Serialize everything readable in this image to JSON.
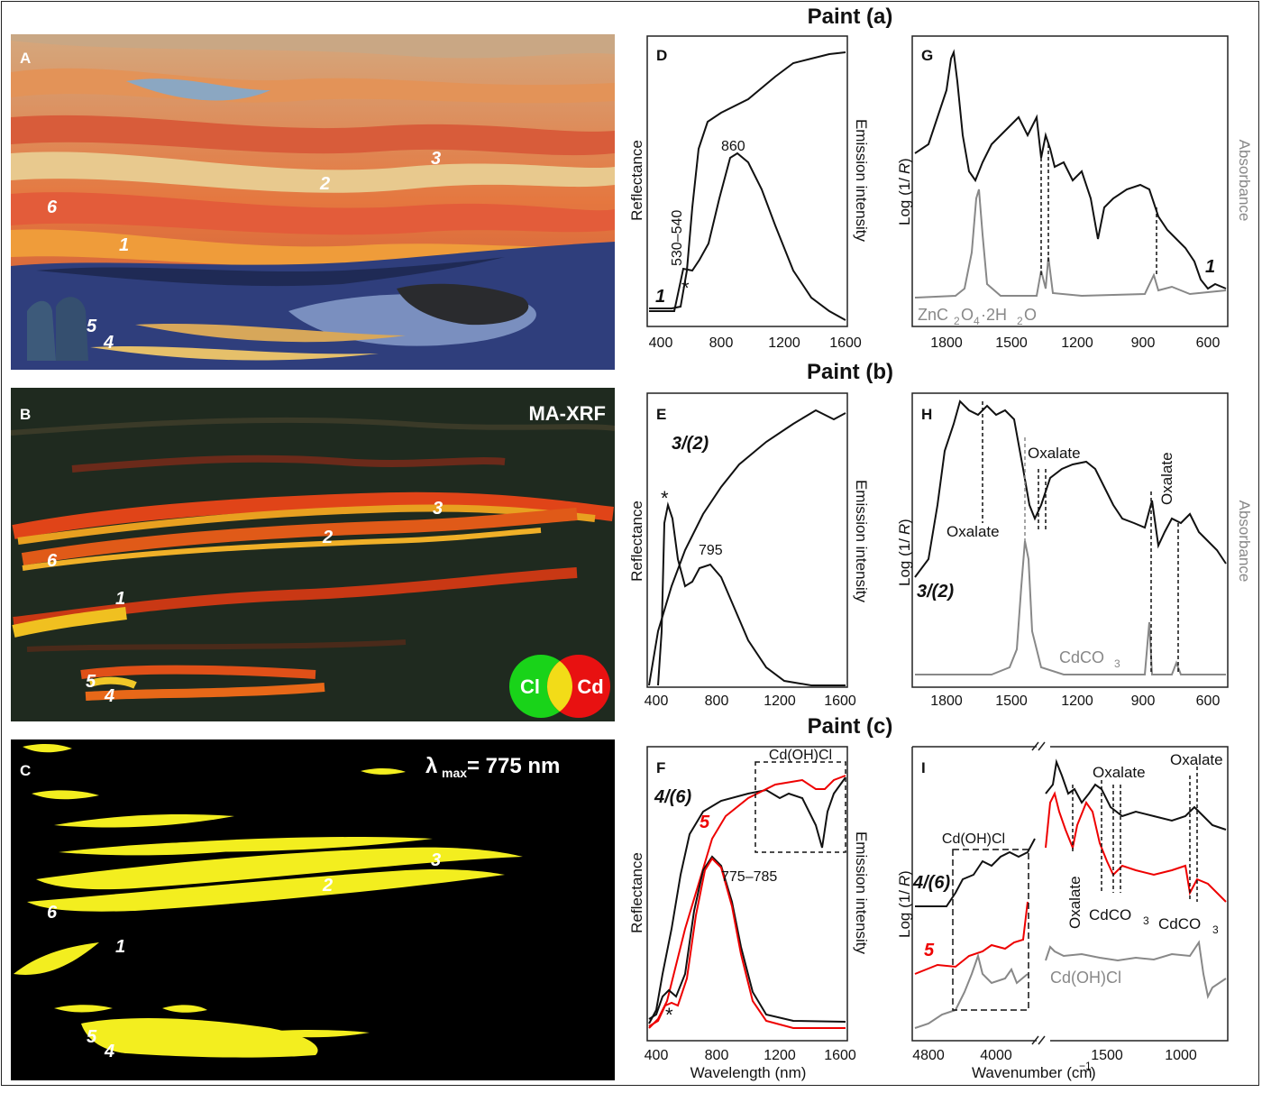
{
  "row_titles": [
    "Paint (a)",
    "Paint (b)",
    "Paint (c)"
  ],
  "panel_A": {
    "letter": "A",
    "labels": [
      "1",
      "2",
      "3",
      "4",
      "5",
      "6"
    ]
  },
  "panel_B": {
    "letter": "B",
    "title": "MA-XRF",
    "labels": [
      "1",
      "2",
      "3",
      "4",
      "5",
      "6"
    ],
    "legend": [
      "Cl",
      "Cd"
    ],
    "colors": {
      "Cl": "#19d319",
      "Cd": "#e81111",
      "overlap": "#f2dc18"
    }
  },
  "panel_C": {
    "letter": "C",
    "title_prefix": "λ",
    "title_sub": "max",
    "title_suffix": " = 775 nm",
    "labels": [
      "1",
      "2",
      "3",
      "4",
      "5",
      "6"
    ],
    "color": "#f3ee1f"
  },
  "panel_D": {
    "letter": "D",
    "sample": "1",
    "annot_bands": "530–540",
    "annot_peak": "860",
    "star": "*"
  },
  "panel_E": {
    "letter": "E",
    "sample": "3/(2)",
    "annot_peak": "795",
    "star": "*"
  },
  "panel_F": {
    "letter": "F",
    "sample": "4/(6)",
    "sample_red": "5",
    "annot_peak": "775–785",
    "star": "*",
    "inset_label": "Cd(OH)Cl"
  },
  "panel_G": {
    "letter": "G",
    "sample": "1",
    "ref_prefix": "ZnC",
    "ref_sub": [
      "2",
      "4",
      "2"
    ],
    "ref_mid": [
      "O",
      "·2H",
      "O"
    ]
  },
  "panel_H": {
    "letter": "H",
    "sample": "3/(2)",
    "oxalate": "Oxalate",
    "ref_main": "CdCO",
    "ref_sub": "3"
  },
  "panel_I": {
    "letter": "I",
    "sample": "4/(6)",
    "sample_red": "5",
    "ref": "Cd(OH)Cl",
    "oxalate": "Oxalate",
    "cdco_main": "CdCO",
    "cdco_sub": "3",
    "box_label": "Cd(OH)Cl"
  },
  "axes": {
    "reflectance": "Reflectance",
    "emission": "Emission intensity",
    "log_label": "Log (1/",
    "log_r": "R",
    "log_close": ")",
    "absorbance": "Absorbance",
    "wavelength": "Wavelength (nm)",
    "wavenumber_main": "Wavenumber (cm",
    "wavenumber_sup": "−1",
    "wavenumber_close": ")",
    "wl_ticks": [
      "400",
      "800",
      "1200",
      "1600"
    ],
    "ir_ticks": [
      "1800",
      "1500",
      "1200",
      "900",
      "600"
    ],
    "ir_ticks_I": [
      "4800",
      "4000",
      "1500",
      "1000"
    ]
  },
  "chart_data": [
    {
      "panel": "D",
      "type": "line",
      "x_range": [
        400,
        1600
      ],
      "series": [
        {
          "values_note": "",
          "x": [],
          "y": []
        }
      ]
    },
    {
      "panel": "E",
      "type": "line",
      "x_range": [
        400,
        1600
      ],
      "series": []
    },
    {
      "panel": "F",
      "type": "line",
      "x_range": [
        400,
        1600
      ],
      "series": []
    },
    {
      "panel": "G",
      "type": "line",
      "x_range": [
        1900,
        500
      ],
      "series": []
    },
    {
      "panel": "H",
      "type": "line",
      "x_range": [
        1900,
        500
      ],
      "series": []
    },
    {
      "panel": "I",
      "type": "line",
      "x_range": [
        5100,
        500
      ],
      "series": []
    }
  ]
}
